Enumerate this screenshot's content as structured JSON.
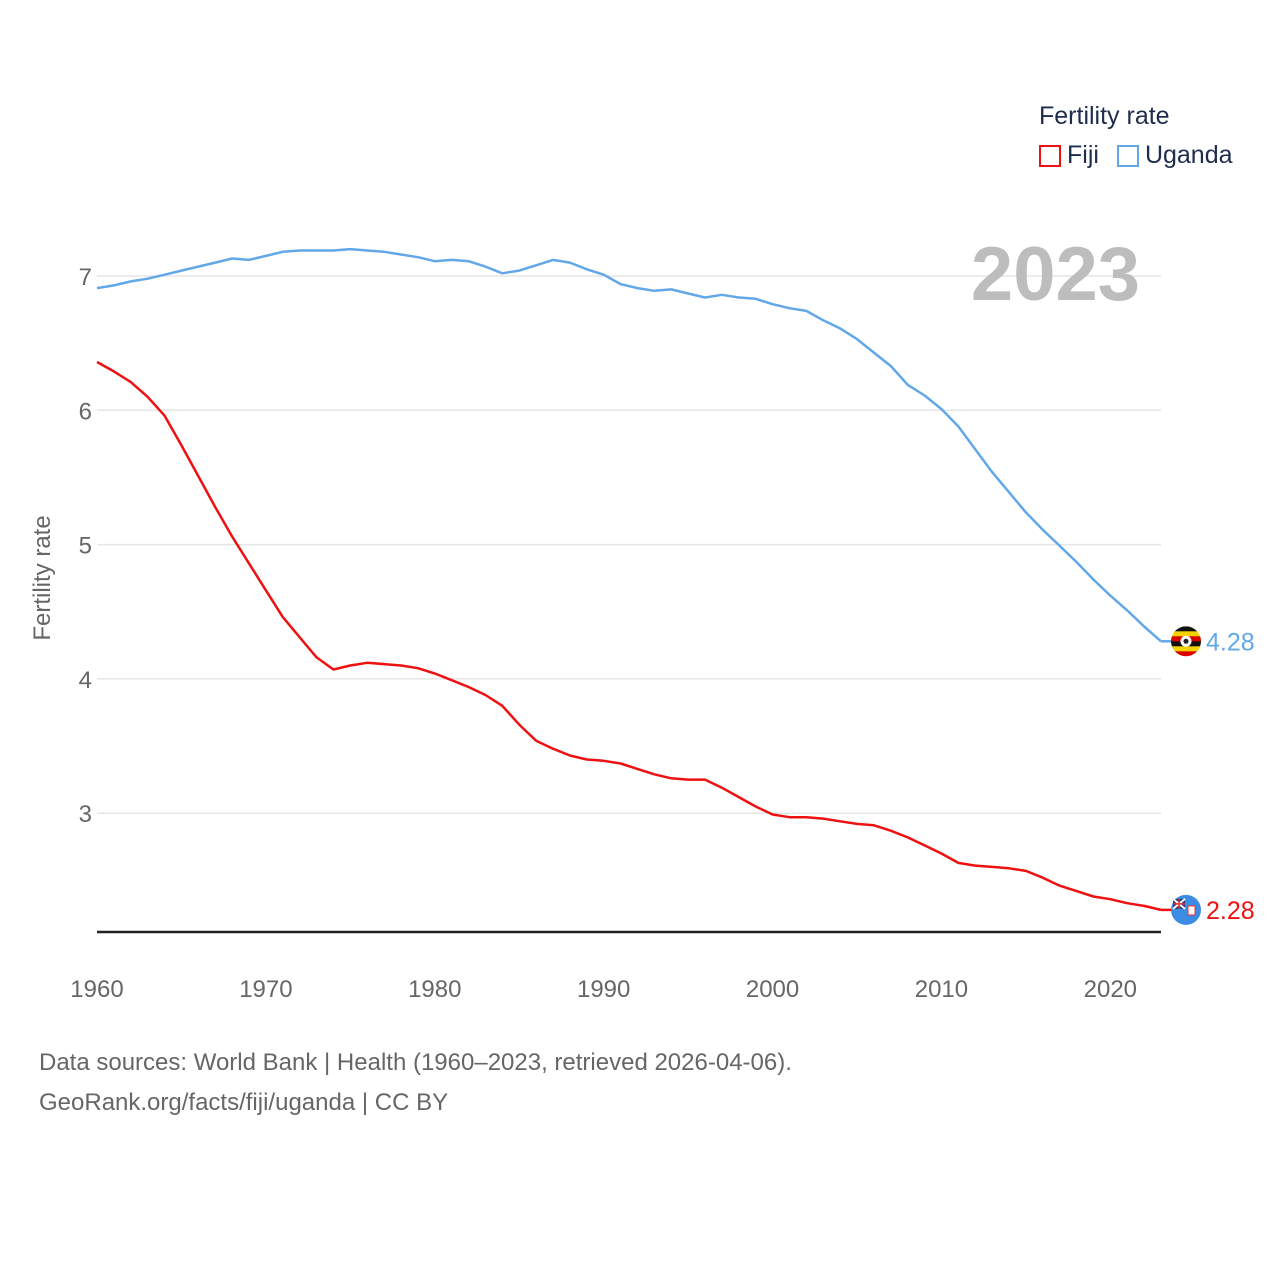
{
  "chart_data": {
    "type": "line",
    "year_label": "2023",
    "ylabel": "Fertility rate",
    "xlim": [
      1960,
      2023
    ],
    "ylim": [
      2.1,
      7.5
    ],
    "x_ticks": [
      1960,
      1970,
      1980,
      1990,
      2000,
      2010,
      2020
    ],
    "y_ticks": [
      3,
      4,
      5,
      6,
      7
    ],
    "legend": {
      "title": "Fertility rate",
      "position": "top-right"
    },
    "x": [
      1960,
      1961,
      1962,
      1963,
      1964,
      1965,
      1966,
      1967,
      1968,
      1969,
      1970,
      1971,
      1972,
      1973,
      1974,
      1975,
      1976,
      1977,
      1978,
      1979,
      1980,
      1981,
      1982,
      1983,
      1984,
      1985,
      1986,
      1987,
      1988,
      1989,
      1990,
      1991,
      1992,
      1993,
      1994,
      1995,
      1996,
      1997,
      1998,
      1999,
      2000,
      2001,
      2002,
      2003,
      2004,
      2005,
      2006,
      2007,
      2008,
      2009,
      2010,
      2011,
      2012,
      2013,
      2014,
      2015,
      2016,
      2017,
      2018,
      2019,
      2020,
      2021,
      2022,
      2023
    ],
    "series": [
      {
        "name": "Fiji",
        "color": "#ee1111",
        "end_label": "2.28",
        "values": [
          6.36,
          6.29,
          6.21,
          6.1,
          5.96,
          5.74,
          5.51,
          5.28,
          5.06,
          4.86,
          4.66,
          4.46,
          4.31,
          4.16,
          4.07,
          4.1,
          4.12,
          4.11,
          4.1,
          4.08,
          4.04,
          3.99,
          3.94,
          3.88,
          3.8,
          3.66,
          3.54,
          3.48,
          3.43,
          3.4,
          3.39,
          3.37,
          3.33,
          3.29,
          3.26,
          3.25,
          3.25,
          3.19,
          3.12,
          3.05,
          2.99,
          2.97,
          2.97,
          2.96,
          2.94,
          2.92,
          2.91,
          2.87,
          2.82,
          2.76,
          2.7,
          2.63,
          2.61,
          2.6,
          2.59,
          2.57,
          2.52,
          2.46,
          2.42,
          2.38,
          2.36,
          2.33,
          2.31,
          2.28
        ]
      },
      {
        "name": "Uganda",
        "color": "#62a8e8",
        "end_label": "4.28",
        "values": [
          6.91,
          6.93,
          6.96,
          6.98,
          7.01,
          7.04,
          7.07,
          7.1,
          7.13,
          7.12,
          7.15,
          7.18,
          7.19,
          7.19,
          7.19,
          7.2,
          7.19,
          7.18,
          7.16,
          7.14,
          7.11,
          7.12,
          7.11,
          7.07,
          7.02,
          7.04,
          7.08,
          7.12,
          7.1,
          7.05,
          7.01,
          6.94,
          6.91,
          6.89,
          6.9,
          6.87,
          6.84,
          6.86,
          6.84,
          6.83,
          6.79,
          6.76,
          6.74,
          6.67,
          6.61,
          6.53,
          6.43,
          6.33,
          6.19,
          6.11,
          6.01,
          5.88,
          5.71,
          5.54,
          5.39,
          5.24,
          5.11,
          4.99,
          4.87,
          4.74,
          4.62,
          4.51,
          4.39,
          4.28
        ]
      }
    ]
  },
  "legend": {
    "title": "Fertility rate",
    "items": [
      {
        "label": "Fiji",
        "color": "#ee1111"
      },
      {
        "label": "Uganda",
        "color": "#62a8e8"
      }
    ]
  },
  "source": {
    "line1": "Data sources: World Bank | Health (1960–2023, retrieved 2026-04-06).",
    "line2": "GeoRank.org/facts/fiji/uganda | CC BY"
  }
}
